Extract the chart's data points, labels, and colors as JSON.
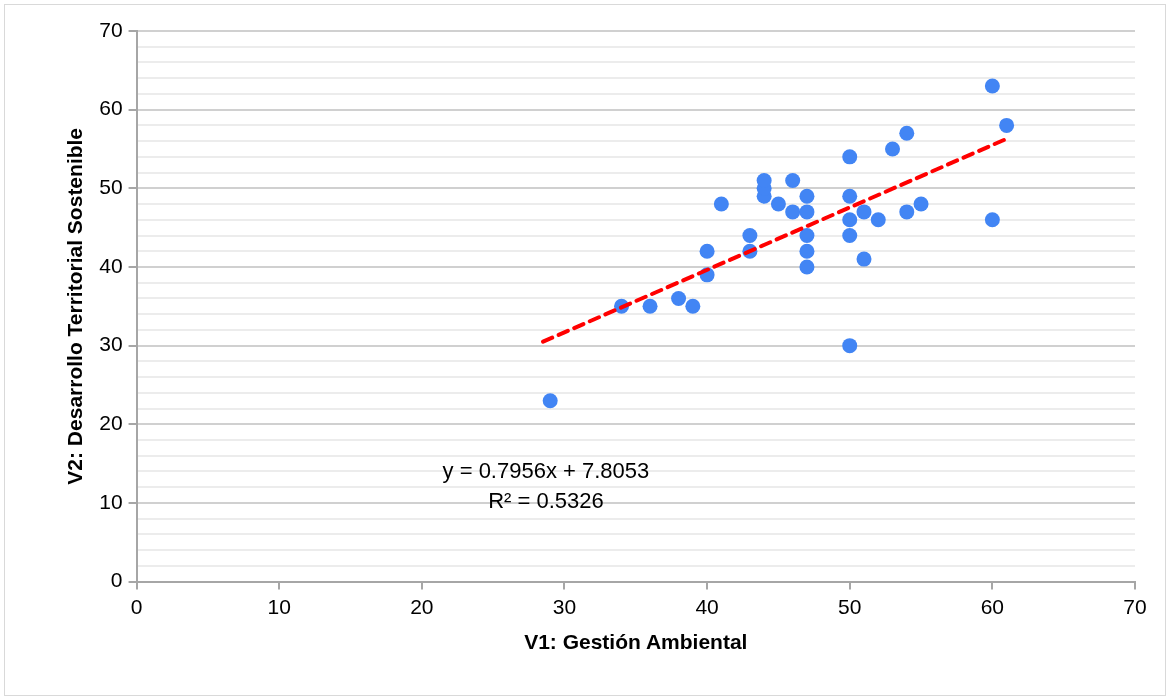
{
  "chart_data": {
    "type": "scatter",
    "xlabel": "V1: Gestión Ambiental",
    "ylabel": "V2: Desarrollo Territorial Sostenible",
    "xlim": [
      0,
      70
    ],
    "xticks": [
      0,
      10,
      20,
      30,
      40,
      50,
      60,
      70
    ],
    "ylim": [
      0,
      70
    ],
    "yticks": [
      0,
      {
        "value": 2,
        "label": null
      },
      {
        "value": 4,
        "label": null
      },
      {
        "value": 6,
        "label": null
      },
      {
        "value": 8,
        "label": null
      },
      10,
      {
        "value": 12,
        "label": null
      },
      {
        "value": 14,
        "label": null
      },
      {
        "value": 16,
        "label": null
      },
      {
        "value": 18,
        "label": null
      },
      20,
      {
        "value": 22,
        "label": null
      },
      {
        "value": 24,
        "label": null
      },
      {
        "value": 26,
        "label": null
      },
      {
        "value": 28,
        "label": null
      },
      30,
      {
        "value": 32,
        "label": null
      },
      {
        "value": 34,
        "label": null
      },
      {
        "value": 36,
        "label": null
      },
      {
        "value": 38,
        "label": null
      },
      40,
      {
        "value": 42,
        "label": null
      },
      {
        "value": 44,
        "label": null
      },
      {
        "value": 46,
        "label": null
      },
      {
        "value": 48,
        "label": null
      },
      50,
      {
        "value": 52,
        "label": null
      },
      {
        "value": 54,
        "label": null
      },
      {
        "value": 56,
        "label": null
      },
      {
        "value": 58,
        "label": null
      },
      60,
      {
        "value": 62,
        "label": null
      },
      {
        "value": 64,
        "label": null
      },
      {
        "value": 66,
        "label": null
      },
      {
        "value": 68,
        "label": null
      },
      70
    ],
    "grid": "y",
    "marker": "circle",
    "series": [
      {
        "color": "#4285f4",
        "x": [
          29,
          34,
          36,
          38,
          39,
          40,
          40,
          41,
          43,
          43,
          44,
          44,
          44,
          45,
          46,
          46,
          47,
          47,
          47,
          47,
          47,
          50,
          50,
          50,
          50,
          50,
          51,
          51,
          52,
          53,
          54,
          54,
          55,
          60,
          60,
          61
        ],
        "values": [
          23,
          35,
          35,
          36,
          35,
          39,
          42,
          48,
          42,
          44,
          49,
          50,
          51,
          48,
          47,
          51,
          49,
          47,
          44,
          42,
          40,
          54,
          49,
          46,
          44,
          30,
          47,
          41,
          46,
          55,
          57,
          47,
          48,
          63,
          46,
          58
        ]
      },
      {
        "type": "line",
        "color": "#ff0000",
        "line_style": "dashed",
        "marker": "none",
        "x": [
          28.5,
          61
        ],
        "values": [
          30.5,
          56.3
        ]
      }
    ],
    "annotations": [
      "y = 0.7956x + 7.8053\nR² = 0.5326"
    ]
  }
}
